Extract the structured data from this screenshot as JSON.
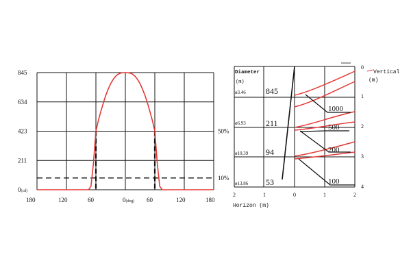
{
  "chart_data": [
    {
      "type": "line",
      "series": [
        {
          "x": [
            -180,
            -90,
            -75,
            -70,
            -65,
            -60,
            -55,
            -50,
            -45,
            -40,
            -35,
            -30,
            -25,
            -20,
            -15,
            -10,
            -5,
            0,
            5,
            10,
            15,
            20,
            25,
            30,
            35,
            40,
            45,
            50,
            55,
            60,
            65,
            70,
            75,
            90,
            180
          ],
          "values": [
            0,
            0,
            0,
            25,
            190,
            423,
            500,
            565,
            625,
            680,
            725,
            765,
            795,
            818,
            833,
            841,
            844,
            845,
            844,
            841,
            833,
            818,
            795,
            765,
            725,
            680,
            625,
            565,
            500,
            423,
            190,
            25,
            0,
            0,
            0
          ],
          "color": "#e53935"
        }
      ],
      "xlim": [
        -180,
        180
      ],
      "ylim": [
        0,
        845
      ],
      "x_tick_labels": [
        "180",
        "120",
        "60",
        "0(deg)",
        "60",
        "120",
        "180"
      ],
      "y_tick_labels": [
        "0(cd)",
        "211",
        "423",
        "634",
        "845"
      ],
      "reference_lines": [
        {
          "label": "50%",
          "y": 423,
          "x_from": -60,
          "x_to": 60
        },
        {
          "label": "10%",
          "y": 85
        }
      ],
      "grid": true
    },
    {
      "type": "table",
      "header": {
        "diameter_label": "Diameter",
        "diameter_unit": "(m)",
        "vertical_label": "Vertical",
        "vertical_unit": "(m)",
        "horizon_label": "Horizon (m)"
      },
      "rows": [
        {
          "diameter": "ø3.46",
          "lux": "845"
        },
        {
          "diameter": "ø6.93",
          "lux": "211"
        },
        {
          "diameter": "ø10.39",
          "lux": "94"
        },
        {
          "diameter": "ø13.86",
          "lux": "53"
        }
      ],
      "horizon_ticks": [
        "2",
        "1",
        "0",
        "1",
        "2"
      ],
      "vertical_ticks": [
        "0",
        "1",
        "2",
        "3",
        "4"
      ],
      "beam_labels": [
        "1000",
        "500",
        "200",
        "100"
      ],
      "curve_color": "#e53935"
    }
  ]
}
